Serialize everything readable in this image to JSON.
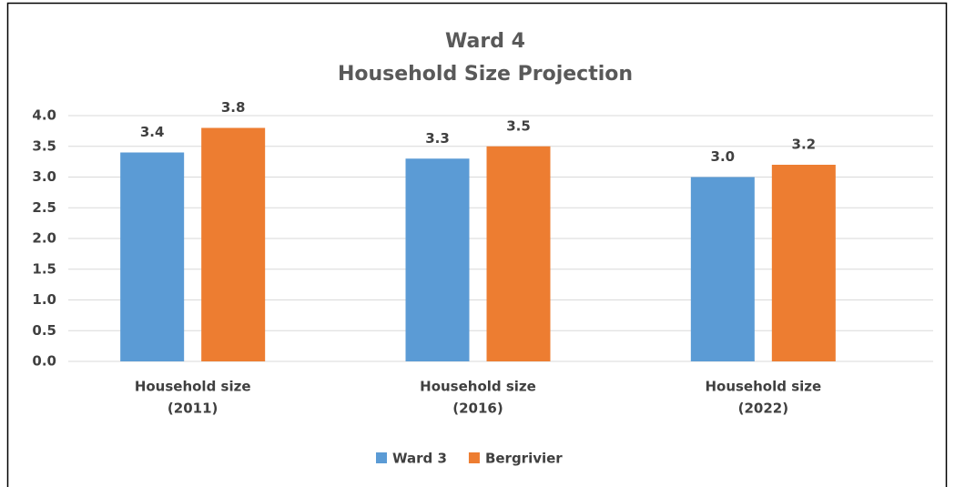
{
  "chart_data": {
    "type": "bar",
    "title": "Ward 4",
    "subtitle": "Household Size Projection",
    "categories": [
      [
        "Household size",
        "(2011)"
      ],
      [
        "Household size",
        "(2016)"
      ],
      [
        "Household size",
        "(2022)"
      ]
    ],
    "series": [
      {
        "name": "Ward 3",
        "color": "#5b9bd5",
        "values": [
          3.4,
          3.3,
          3.0
        ],
        "value_labels": [
          "3.4",
          "3.3",
          "3.0"
        ]
      },
      {
        "name": "Bergrivier",
        "color": "#ed7d31",
        "values": [
          3.8,
          3.5,
          3.2
        ],
        "value_labels": [
          "3.8",
          "3.5",
          "3.2"
        ]
      }
    ],
    "ylim": [
      0,
      4
    ],
    "yticks": [
      {
        "value": 0,
        "label": "0.0"
      },
      0.5,
      {
        "value": 1,
        "label": "1.0"
      },
      1.5,
      {
        "value": 2,
        "label": "2.0"
      },
      2.5,
      {
        "value": 3,
        "label": "3.0"
      },
      3.5,
      {
        "value": 4,
        "label": "4.0"
      }
    ],
    "grid": true,
    "legend": "bottom"
  }
}
